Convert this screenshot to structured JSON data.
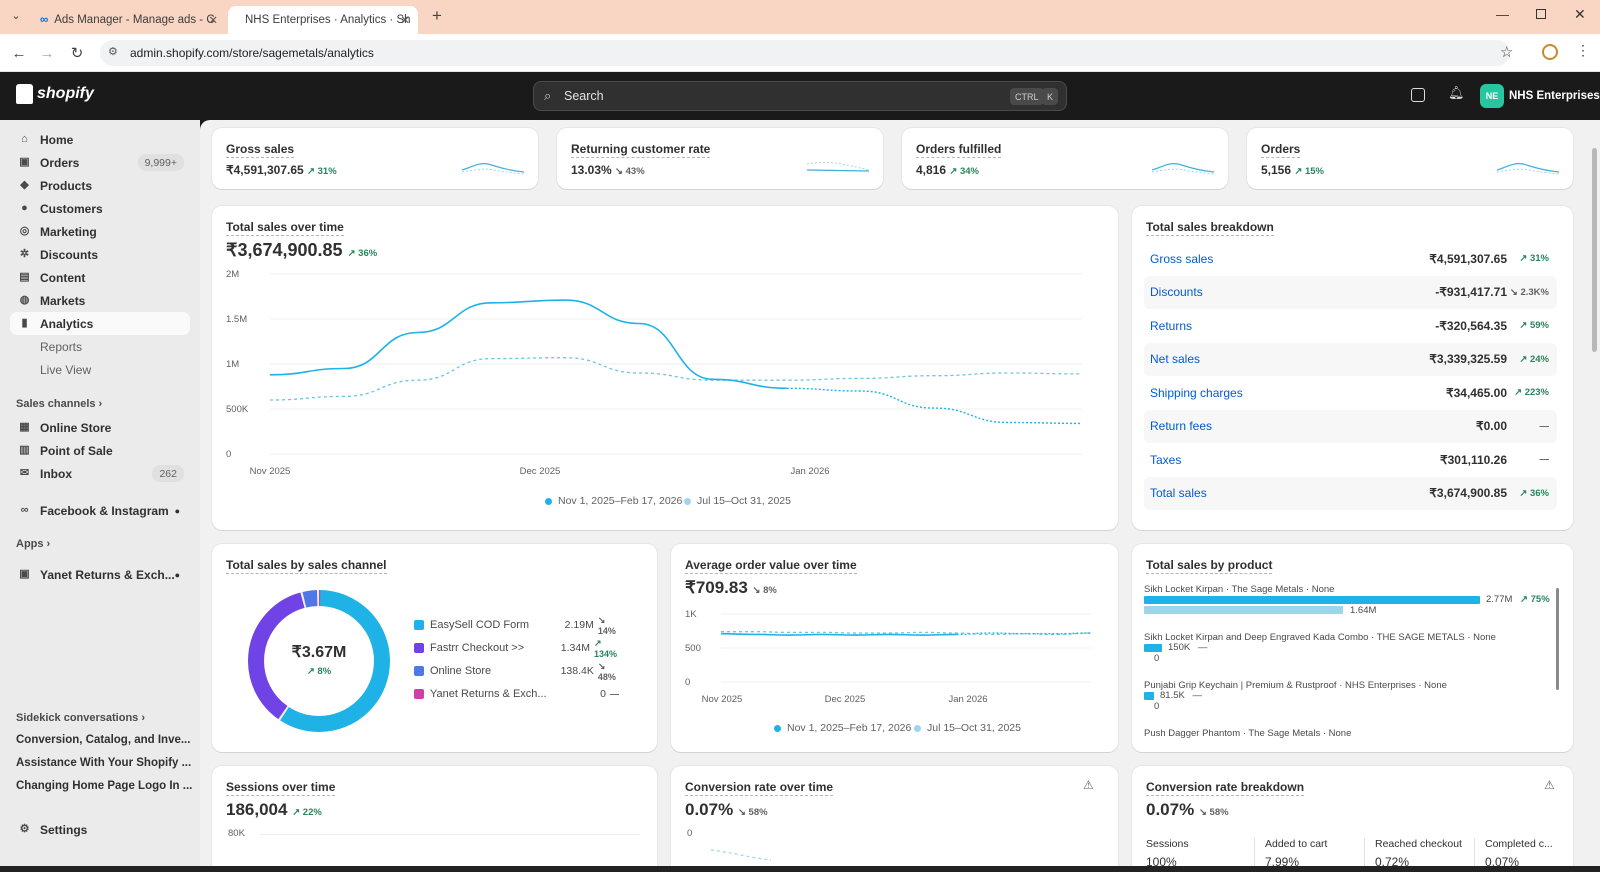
{
  "browser": {
    "tabs": [
      {
        "label": "Ads Manager - Manage ads - C"
      },
      {
        "label": "NHS Enterprises · Analytics · Sh"
      }
    ],
    "url": "admin.shopify.com/store/sagemetals/analytics"
  },
  "topbar": {
    "logo": "shopify",
    "search_placeholder": "Search",
    "shortcut_ctrl": "CTRL",
    "shortcut_k": "K",
    "avatar_initials": "NE",
    "store_name": "NHS Enterprises"
  },
  "sidebar": {
    "items": [
      {
        "label": "Home",
        "icon": "home-icon"
      },
      {
        "label": "Orders",
        "icon": "orders-icon",
        "badge": "9,999+"
      },
      {
        "label": "Products",
        "icon": "tag-icon"
      },
      {
        "label": "Customers",
        "icon": "person-icon"
      },
      {
        "label": "Marketing",
        "icon": "target-icon"
      },
      {
        "label": "Discounts",
        "icon": "discount-icon"
      },
      {
        "label": "Content",
        "icon": "content-icon"
      },
      {
        "label": "Markets",
        "icon": "globe-icon"
      },
      {
        "label": "Analytics",
        "icon": "bar-chart-icon"
      }
    ],
    "analytics_sub": [
      "Reports",
      "Live View"
    ],
    "sales_channels_label": "Sales channels",
    "channels": [
      {
        "label": "Online Store",
        "icon": "store-icon"
      },
      {
        "label": "Point of Sale",
        "icon": "pos-icon"
      },
      {
        "label": "Inbox",
        "icon": "inbox-icon",
        "badge": "262"
      }
    ],
    "facebook_label": "Facebook & Instagram",
    "apps_label": "Apps",
    "app_item": "Yanet Returns & Exch...",
    "sidekick_label": "Sidekick conversations",
    "conversations": [
      "Conversion, Catalog, and Inve...",
      "Assistance With Your Shopify ...",
      "Changing Home Page Logo In ..."
    ],
    "settings_label": "Settings"
  },
  "kpis": [
    {
      "title": "Gross sales",
      "value": "₹4,591,307.65",
      "change": "↗ 31%",
      "up": true
    },
    {
      "title": "Returning customer rate",
      "value": "13.03%",
      "change": "↘ 43%",
      "up": false
    },
    {
      "title": "Orders fulfilled",
      "value": "4,816",
      "change": "↗ 34%",
      "up": true
    },
    {
      "title": "Orders",
      "value": "5,156",
      "change": "↗ 15%",
      "up": true
    }
  ],
  "total_sales_over_time": {
    "title": "Total sales over time",
    "value": "₹3,674,900.85",
    "change": "↗ 36%",
    "legend": [
      "Nov 1, 2025–Feb 17, 2026",
      "Jul 15–Oct 31, 2025"
    ]
  },
  "sales_breakdown": {
    "title": "Total sales breakdown",
    "rows": [
      {
        "label": "Gross sales",
        "value": "₹4,591,307.65",
        "change": "↗ 31%",
        "tone": "up"
      },
      {
        "label": "Discounts",
        "value": "-₹931,417.71",
        "change": "↘ 2.3K%",
        "tone": "neutral"
      },
      {
        "label": "Returns",
        "value": "-₹320,564.35",
        "change": "↗ 59%",
        "tone": "up"
      },
      {
        "label": "Net sales",
        "value": "₹3,339,325.59",
        "change": "↗ 24%",
        "tone": "up"
      },
      {
        "label": "Shipping charges",
        "value": "₹34,465.00",
        "change": "↗ 223%",
        "tone": "up"
      },
      {
        "label": "Return fees",
        "value": "₹0.00",
        "change": "—",
        "tone": "neutral"
      },
      {
        "label": "Taxes",
        "value": "₹301,110.26",
        "change": "—",
        "tone": "neutral"
      },
      {
        "label": "Total sales",
        "value": "₹3,674,900.85",
        "change": "↗ 36%",
        "tone": "up"
      }
    ]
  },
  "sales_by_channel": {
    "title": "Total sales by sales channel",
    "center_value": "₹3.67M",
    "center_change": "↗ 8%",
    "channels": [
      {
        "name": "EasySell COD Form",
        "value": "2.19M",
        "change": "↘ 14%",
        "color": "#1eb2e6"
      },
      {
        "name": "Fastrr Checkout >>",
        "value": "1.34M",
        "change": "↗ 134%",
        "color": "#6f43e6"
      },
      {
        "name": "Online Store",
        "value": "138.4K",
        "change": "↘ 48%",
        "color": "#4d78e8"
      },
      {
        "name": "Yanet Returns & Exch...",
        "value": "0",
        "change": "—",
        "color": "#cf3fa8"
      }
    ]
  },
  "aov": {
    "title": "Average order value over time",
    "value": "₹709.83",
    "change": "↘ 8%",
    "legend": [
      "Nov 1, 2025–Feb 17, 2026",
      "Jul 15–Oct 31, 2025"
    ]
  },
  "sales_by_product": {
    "title": "Total sales by product",
    "products": [
      {
        "name": "Sikh Locket Kirpan · The Sage Metals · None",
        "current": "2.77M",
        "previous": "1.64M",
        "change": "↗ 75%"
      },
      {
        "name": "Sikh Locket Kirpan and Deep Engraved Kada Combo · THE SAGE METALS · None",
        "current": "150K",
        "previous": "0",
        "change": "—"
      },
      {
        "name": "Punjabi Grip Keychain | Premium & Rustproof · NHS Enterprises · None",
        "current": "81.5K",
        "previous": "0",
        "change": "—"
      },
      {
        "name": "Push Dagger Phantom · The Sage Metals · None",
        "current": "",
        "previous": "",
        "change": ""
      }
    ]
  },
  "sessions": {
    "title": "Sessions over time",
    "value": "186,004",
    "change": "↗ 22%",
    "tick": "80K"
  },
  "conversion_time": {
    "title": "Conversion rate over time",
    "value": "0.07%",
    "change": "↘ 58%",
    "tick": "0"
  },
  "conversion_breakdown": {
    "title": "Conversion rate breakdown",
    "value": "0.07%",
    "change": "↘ 58%",
    "steps": [
      {
        "label": "Sessions",
        "value": "100%"
      },
      {
        "label": "Added to cart",
        "value": "7.99%"
      },
      {
        "label": "Reached checkout",
        "value": "0.72%"
      },
      {
        "label": "Completed c...",
        "value": "0.07%"
      }
    ]
  },
  "chart_data": [
    {
      "type": "line",
      "title": "Total sales over time",
      "x_ticks": [
        "Nov 2025",
        "Dec 2025",
        "Jan 2026"
      ],
      "y_ticks": [
        "0",
        "500K",
        "1M",
        "1.5M",
        "2M"
      ],
      "ylim": [
        0,
        2000000
      ],
      "series": [
        {
          "name": "Nov 1, 2025–Feb 17, 2026",
          "values": [
            880000,
            950000,
            1350000,
            1680000,
            1710000,
            1450000,
            830000,
            730000,
            700000,
            510000,
            350000,
            340000
          ]
        },
        {
          "name": "Jul 15–Oct 31, 2025",
          "values": [
            600000,
            640000,
            820000,
            1060000,
            1070000,
            900000,
            820000,
            820000,
            840000,
            870000,
            900000,
            890000
          ]
        }
      ]
    },
    {
      "type": "line",
      "title": "Average order value over time",
      "x_ticks": [
        "Nov 2025",
        "Dec 2025",
        "Jan 2026"
      ],
      "y_ticks": [
        "0",
        "500",
        "1K"
      ],
      "ylim": [
        0,
        1000
      ],
      "series": [
        {
          "name": "Nov 1, 2025–Feb 17, 2026",
          "values": [
            710,
            700,
            690,
            700,
            690,
            700,
            690,
            700,
            720,
            710,
            710,
            720
          ]
        },
        {
          "name": "Jul 15–Oct 31, 2025",
          "values": [
            740,
            740,
            730,
            730,
            720,
            720,
            730,
            720,
            700,
            710,
            700,
            720
          ]
        }
      ]
    },
    {
      "type": "pie",
      "title": "Total sales by sales channel",
      "categories": [
        "EasySell COD Form",
        "Fastrr Checkout >>",
        "Online Store",
        "Yanet Returns & Exch..."
      ],
      "values": [
        2190000,
        1340000,
        138400,
        0
      ]
    }
  ]
}
